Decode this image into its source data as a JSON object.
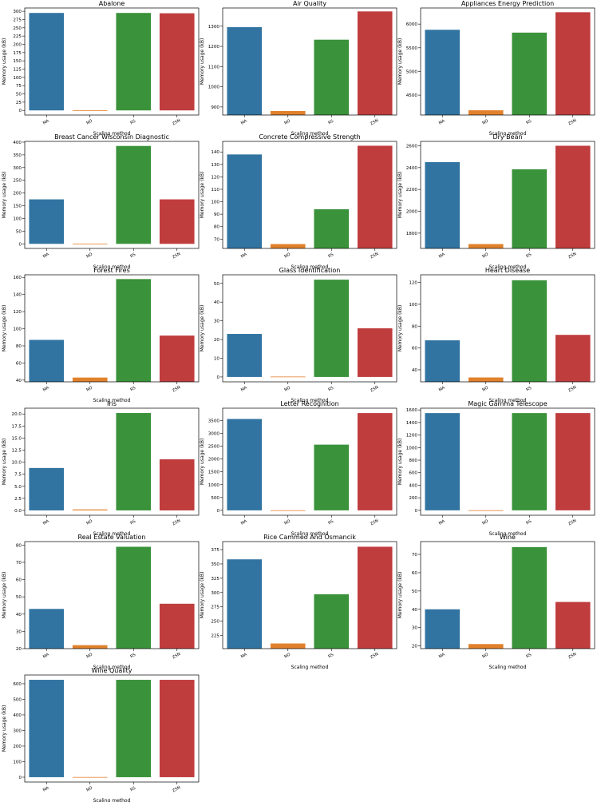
{
  "colors": {
    "MA": "#3274a1",
    "NO": "#e1812c",
    "RS": "#3a923a",
    "ZSN": "#c03d3e"
  },
  "chart_data": [
    {
      "type": "bar",
      "title": "Abalone",
      "xlabel": "Scaling method",
      "ylabel": "Memory usage (kB)",
      "categories": [
        "MA",
        "NO",
        "RS",
        "ZSN"
      ],
      "values": [
        295,
        0.5,
        295,
        294
      ],
      "ylim": [
        -14,
        310
      ],
      "yticks": [
        0,
        25,
        50,
        75,
        100,
        125,
        150,
        175,
        200,
        225,
        250,
        275,
        300
      ]
    },
    {
      "type": "bar",
      "title": "Air Quality",
      "xlabel": "Scaling method",
      "ylabel": "Memory usage (kB)",
      "categories": [
        "MA",
        "NO",
        "RS",
        "ZSN"
      ],
      "values": [
        1295,
        880,
        1233,
        1373
      ],
      "ylim": [
        860,
        1390
      ],
      "yticks": [
        900,
        1000,
        1100,
        1200,
        1300
      ]
    },
    {
      "type": "bar",
      "title": "Appliances Energy Prediction",
      "xlabel": "Scaling method",
      "ylabel": "Memory usage (kB)",
      "categories": [
        "MA",
        "NO",
        "RS",
        "ZSN"
      ],
      "values": [
        5880,
        4180,
        5820,
        6250
      ],
      "ylim": [
        4080,
        6340
      ],
      "yticks": [
        4500,
        5000,
        5500,
        6000
      ]
    },
    {
      "type": "bar",
      "title": "Breast Cancer Wisconsin Diagnostic",
      "xlabel": "Scaling method",
      "ylabel": "Memory usage (kB)",
      "categories": [
        "MA",
        "NO",
        "RS",
        "ZSN"
      ],
      "values": [
        175,
        1,
        385,
        175
      ],
      "ylim": [
        -18,
        403
      ],
      "yticks": [
        0,
        50,
        100,
        150,
        200,
        250,
        300,
        350,
        400
      ]
    },
    {
      "type": "bar",
      "title": "Concrete Compressive Strength",
      "xlabel": "Scaling method",
      "ylabel": "Memory usage (kB)",
      "categories": [
        "MA",
        "NO",
        "RS",
        "ZSN"
      ],
      "values": [
        138,
        66,
        94,
        145
      ],
      "ylim": [
        62.5,
        148.5
      ],
      "yticks": [
        70,
        80,
        90,
        100,
        110,
        120,
        130,
        140
      ]
    },
    {
      "type": "bar",
      "title": "Dry Bean",
      "xlabel": "Scaling method",
      "ylabel": "Memory usage (kB)",
      "categories": [
        "MA",
        "NO",
        "RS",
        "ZSN"
      ],
      "values": [
        2450,
        1700,
        2385,
        2600
      ],
      "ylim": [
        1660,
        2640
      ],
      "yticks": [
        1800,
        2000,
        2200,
        2400,
        2600
      ]
    },
    {
      "type": "bar",
      "title": "Forest Fires",
      "xlabel": "Scaling method",
      "ylabel": "Memory usage (kB)",
      "categories": [
        "MA",
        "NO",
        "RS",
        "ZSN"
      ],
      "values": [
        87,
        43,
        158,
        92
      ],
      "ylim": [
        38,
        163
      ],
      "yticks": [
        40,
        60,
        80,
        100,
        120,
        140,
        160
      ]
    },
    {
      "type": "bar",
      "title": "Glass Identification",
      "xlabel": "Scaling method",
      "ylabel": "Memory usage (kB)",
      "categories": [
        "MA",
        "NO",
        "RS",
        "ZSN"
      ],
      "values": [
        23,
        0.2,
        52,
        26
      ],
      "ylim": [
        -2.6,
        54.6
      ],
      "yticks": [
        0,
        10,
        20,
        30,
        40,
        50
      ]
    },
    {
      "type": "bar",
      "title": "Heart Disease",
      "xlabel": "Scaling method",
      "ylabel": "Memory usage (kB)",
      "categories": [
        "MA",
        "NO",
        "RS",
        "ZSN"
      ],
      "values": [
        67,
        33,
        122,
        72
      ],
      "ylim": [
        29,
        127
      ],
      "yticks": [
        40,
        60,
        80,
        100,
        120
      ]
    },
    {
      "type": "bar",
      "title": "Iris",
      "xlabel": "Scaling method",
      "ylabel": "Memory usage (kB)",
      "categories": [
        "MA",
        "NO",
        "RS",
        "ZSN"
      ],
      "values": [
        8.8,
        0.2,
        20.2,
        10.6
      ],
      "ylim": [
        -1.0,
        21.2
      ],
      "yticks": [
        0.0,
        2.5,
        5.0,
        7.5,
        10.0,
        12.5,
        15.0,
        17.5,
        20.0
      ]
    },
    {
      "type": "bar",
      "title": "Letter Recognition",
      "xlabel": "Scaling method",
      "ylabel": "Memory usage (kB)",
      "categories": [
        "MA",
        "NO",
        "RS",
        "ZSN"
      ],
      "values": [
        3560,
        2,
        2560,
        3790
      ],
      "ylim": [
        -190,
        3980
      ],
      "yticks": [
        0,
        500,
        1000,
        1500,
        2000,
        2500,
        3000,
        3500
      ]
    },
    {
      "type": "bar",
      "title": "Magic Gamma Telescope",
      "xlabel": "Scaling method",
      "ylabel": "Memory usage (kB)",
      "categories": [
        "MA",
        "NO",
        "RS",
        "ZSN"
      ],
      "values": [
        1550,
        1,
        1550,
        1550
      ],
      "ylim": [
        -78,
        1628
      ],
      "yticks": [
        0,
        200,
        400,
        600,
        800,
        1000,
        1200,
        1400,
        1600
      ]
    },
    {
      "type": "bar",
      "title": "Real Estate Valuation",
      "xlabel": "Scaling method",
      "ylabel": "Memory usage (kB)",
      "categories": [
        "MA",
        "NO",
        "RS",
        "ZSN"
      ],
      "values": [
        43,
        22,
        79,
        46
      ],
      "ylim": [
        20,
        82
      ],
      "yticks": [
        20,
        30,
        40,
        50,
        60,
        70,
        80
      ]
    },
    {
      "type": "bar",
      "title": "Rice Cammeo And Osmancik",
      "xlabel": "Scaling method",
      "ylabel": "Memory usage (kB)",
      "categories": [
        "MA",
        "NO",
        "RS",
        "ZSN"
      ],
      "values": [
        358,
        211,
        297,
        380
      ],
      "ylim": [
        202,
        389
      ],
      "yticks": [
        225,
        250,
        275,
        300,
        325,
        350,
        375
      ]
    },
    {
      "type": "bar",
      "title": "Wine",
      "xlabel": "Scaling method",
      "ylabel": "Memory usage (kB)",
      "categories": [
        "MA",
        "NO",
        "RS",
        "ZSN"
      ],
      "values": [
        40,
        21,
        74,
        44
      ],
      "ylim": [
        18.5,
        77
      ],
      "yticks": [
        20,
        30,
        40,
        50,
        60,
        70
      ]
    },
    {
      "type": "bar",
      "title": "Wine Quality",
      "xlabel": "Scaling method",
      "ylabel": "Memory usage (kB)",
      "categories": [
        "MA",
        "NO",
        "RS",
        "ZSN"
      ],
      "values": [
        625,
        1,
        625,
        625
      ],
      "ylim": [
        -31,
        656
      ],
      "yticks": [
        0,
        100,
        200,
        300,
        400,
        500,
        600
      ]
    }
  ]
}
